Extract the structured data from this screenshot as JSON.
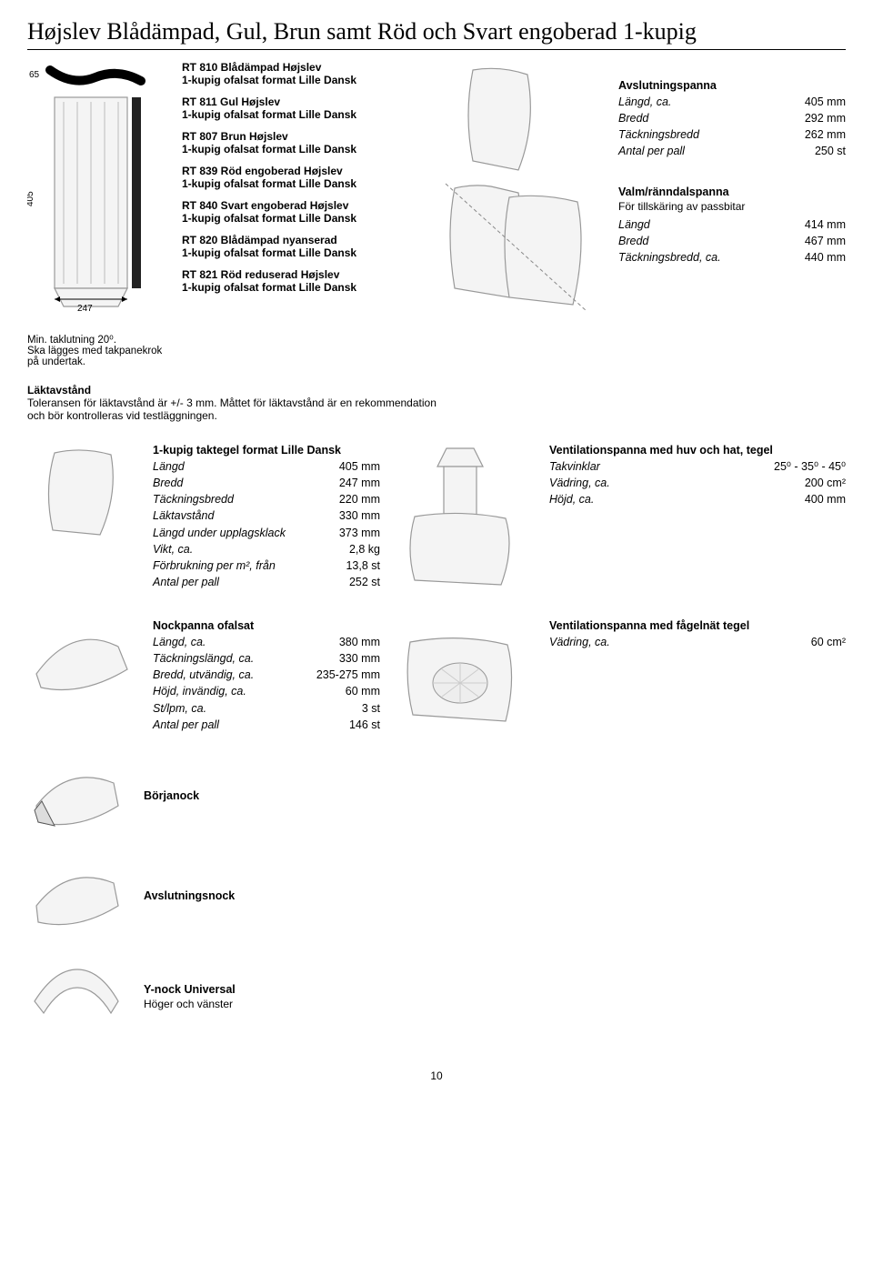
{
  "title": "Højslev Blådämpad, Gul, Brun samt Röd och Svart engoberad 1-kupig",
  "diagram": {
    "h": "65",
    "v": "405",
    "w": "247"
  },
  "products": [
    {
      "name": "RT 810 Blådämpad Højslev",
      "desc": "1-kupig ofalsat format Lille Dansk"
    },
    {
      "name": "RT 811 Gul Højslev",
      "desc": "1-kupig ofalsat format Lille Dansk"
    },
    {
      "name": "RT 807 Brun Højslev",
      "desc": "1-kupig ofalsat format Lille Dansk"
    },
    {
      "name": "RT 839 Röd engoberad Højslev",
      "desc": "1-kupig ofalsat format Lille Dansk"
    },
    {
      "name": "RT 840 Svart engoberad Højslev",
      "desc": "1-kupig ofalsat format Lille Dansk"
    },
    {
      "name": "RT 820 Blådämpad nyanserad",
      "desc": "1-kupig ofalsat format Lille Dansk"
    },
    {
      "name": "RT 821 Röd reduserad Højslev",
      "desc": "1-kupig ofalsat format Lille Dansk"
    }
  ],
  "footnote1": "Min. taklutning 20⁰.",
  "footnote2": "Ska lägges med takpanekrok på undertak.",
  "avslutning": {
    "title": "Avslutningspanna",
    "rows": [
      {
        "label": "Längd, ca.",
        "value": "405 mm"
      },
      {
        "label": "Bredd",
        "value": "292 mm"
      },
      {
        "label": "Täckningsbredd",
        "value": "262 mm"
      },
      {
        "label": "Antal per pall",
        "value": "250 st"
      }
    ]
  },
  "valm": {
    "title": "Valm/ränndalspanna",
    "sub": "För tillskäring av passbitar",
    "rows": [
      {
        "label": "Längd",
        "value": "414 mm"
      },
      {
        "label": "Bredd",
        "value": "467 mm"
      },
      {
        "label": "Täckningsbredd, ca.",
        "value": "440 mm"
      }
    ]
  },
  "lakt": {
    "title": "Läktavstånd",
    "text": "Toleransen för läktavstånd är +/- 3 mm. Måttet för läktavstånd är en rekommendation och bör kontrolleras vid testläggningen."
  },
  "kupig": {
    "title": "1-kupig taktegel format Lille Dansk",
    "rows": [
      {
        "label": "Längd",
        "value": "405 mm"
      },
      {
        "label": "Bredd",
        "value": "247 mm"
      },
      {
        "label": "Täckningsbredd",
        "value": "220 mm"
      },
      {
        "label": "Läktavstånd",
        "value": "330 mm"
      },
      {
        "label": "Längd under upplagsklack",
        "value": "373 mm"
      },
      {
        "label": "Vikt, ca.",
        "value": "2,8 kg"
      },
      {
        "label": "Förbrukning per m², från",
        "value": "13,8 st"
      },
      {
        "label": "Antal per pall",
        "value": "252 st"
      }
    ]
  },
  "vent_huv": {
    "title": "Ventilationspanna med huv och hat, tegel",
    "rows": [
      {
        "label": "Takvinklar",
        "value": "25⁰ - 35⁰ - 45⁰"
      },
      {
        "label": "Vädring, ca.",
        "value": "200 cm²"
      },
      {
        "label": "Höjd, ca.",
        "value": "400 mm"
      }
    ]
  },
  "nock": {
    "title": "Nockpanna ofalsat",
    "rows": [
      {
        "label": "Längd, ca.",
        "value": "380 mm"
      },
      {
        "label": "Täckningslängd, ca.",
        "value": "330 mm"
      },
      {
        "label": "Bredd, utvändig, ca.",
        "value": "235-275 mm"
      },
      {
        "label": "Höjd, invändig, ca.",
        "value": "60 mm"
      },
      {
        "label": "St/lpm, ca.",
        "value": "3 st"
      },
      {
        "label": "Antal per pall",
        "value": "146 st"
      }
    ]
  },
  "vent_fagel": {
    "title": "Ventilationspanna med fågelnät tegel",
    "rows": [
      {
        "label": "Vädring, ca.",
        "value": "60 cm²"
      }
    ]
  },
  "borjanock": "Börjanock",
  "avslutningsnock": "Avslutningsnock",
  "ynock": {
    "title": "Y-nock Universal",
    "sub": "Höger och vänster"
  },
  "pagenum": "10"
}
